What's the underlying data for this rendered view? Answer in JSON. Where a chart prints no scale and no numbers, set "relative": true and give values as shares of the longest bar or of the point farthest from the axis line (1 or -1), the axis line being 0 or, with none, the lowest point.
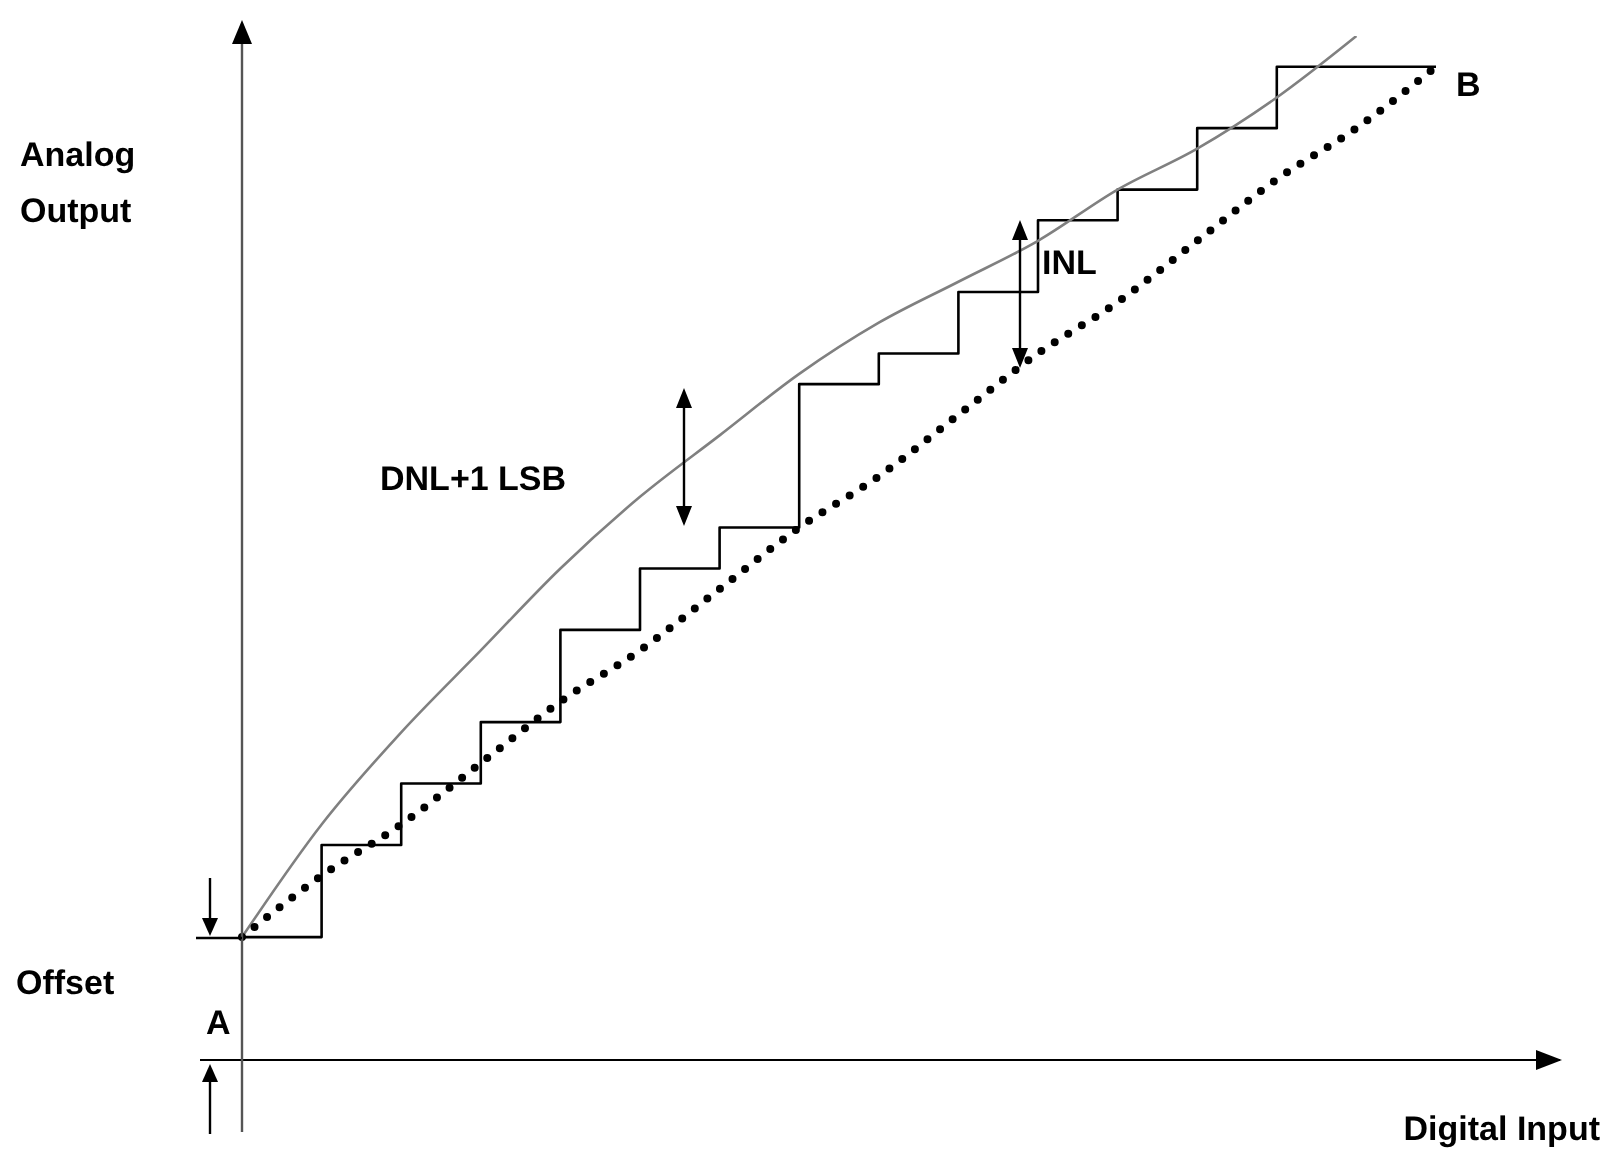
{
  "chart_data": {
    "type": "line",
    "xlabel": "Digital Input",
    "ylabel": "Analog Output",
    "relative": true,
    "marker": "none",
    "categories": [
      null,
      null,
      null,
      null,
      null,
      null,
      null,
      null,
      null,
      null,
      null,
      null,
      null,
      null,
      null,
      null
    ],
    "series": [
      {
        "type": "step",
        "color": "#000000",
        "line_style": "solid",
        "values": [
          0.12,
          0.21,
          0.27,
          0.33,
          0.42,
          0.48,
          0.52,
          0.66,
          0.69,
          0.75,
          0.82,
          0.85,
          0.91,
          0.97,
          0.97,
          0.97
        ]
      },
      {
        "type": "line",
        "color": "#808080",
        "line_style": "solid",
        "values": [
          0.12,
          0.23,
          0.32,
          0.4,
          0.48,
          0.55,
          0.61,
          0.67,
          0.72,
          0.76,
          0.8,
          0.85,
          0.89,
          0.94,
          1.0,
          null
        ]
      },
      {
        "type": "line",
        "color": "#000000",
        "line_style": "dotted",
        "values": [
          0.12,
          0.18,
          0.23,
          0.29,
          0.35,
          0.4,
          0.46,
          0.52,
          0.57,
          0.63,
          0.69,
          0.74,
          0.8,
          0.86,
          0.91,
          0.97
        ]
      }
    ],
    "annotations": [
      "DNL+1 LSB",
      "INL",
      "A",
      "B",
      "Offset"
    ]
  }
}
